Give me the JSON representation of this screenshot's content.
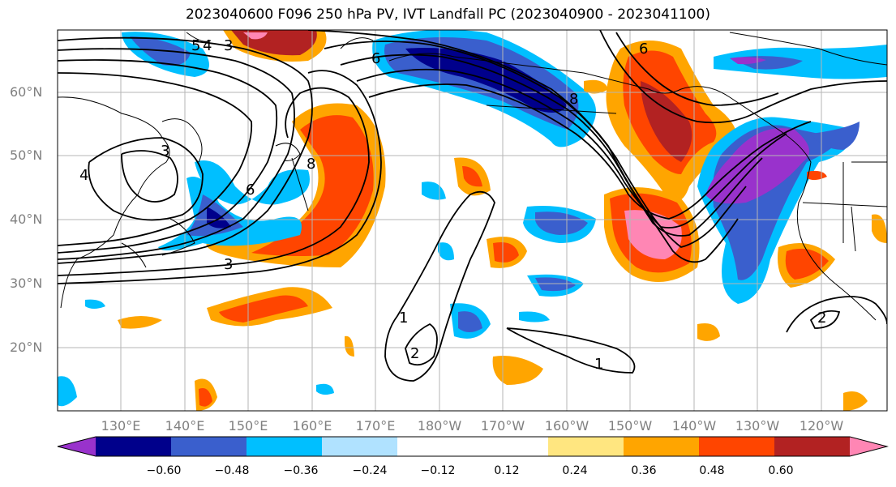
{
  "title": "2023040600 F096 250 hPa PV, IVT Landfall PC (2023040900 - 2023041100)",
  "lat_labels": [
    "60°N",
    "50°N",
    "40°N",
    "30°N",
    "20°N"
  ],
  "lon_labels": [
    "130°E",
    "140°E",
    "150°E",
    "160°E",
    "170°E",
    "180°W",
    "170°W",
    "160°W",
    "150°W",
    "140°W",
    "130°W",
    "120°W"
  ],
  "contour_labels": [
    "3",
    "6",
    "8",
    "1",
    "2",
    "1",
    "2",
    "4",
    "6",
    "8",
    "6",
    "3",
    "5",
    "4",
    "3"
  ],
  "colorbar": {
    "colors": [
      "#9932cc",
      "#00008b",
      "#3a5fcd",
      "#00bfff",
      "#b0e2ff",
      "#ffffff",
      "#ffffff",
      "#ffe680",
      "#ffa500",
      "#ff4500",
      "#b22222",
      "#ff86b4"
    ],
    "ticks": [
      "−0.60",
      "−0.48",
      "−0.36",
      "−0.24",
      "−0.12",
      "0.12",
      "0.24",
      "0.36",
      "0.48",
      "0.60"
    ]
  }
}
